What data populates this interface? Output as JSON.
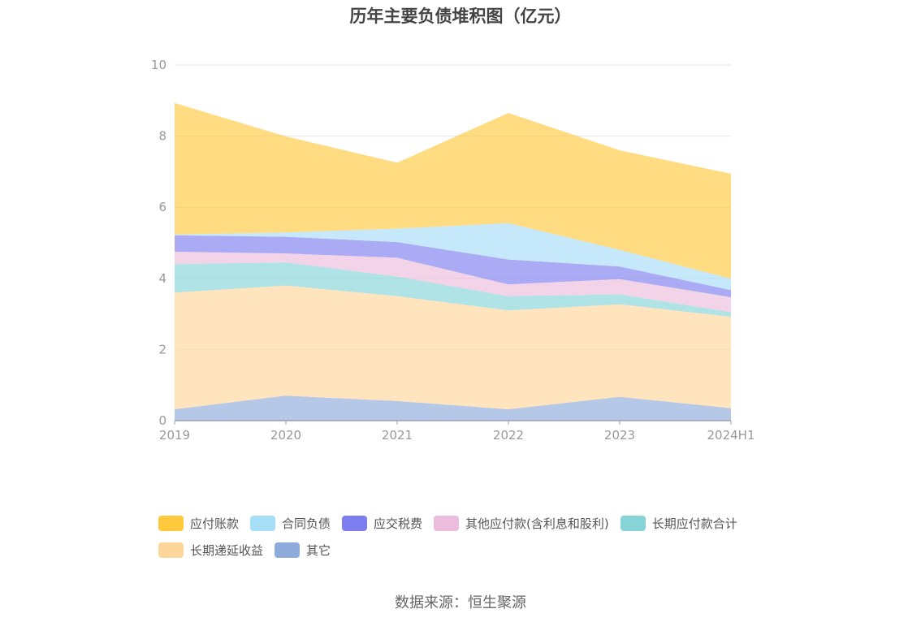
{
  "chart_data": {
    "type": "area",
    "stacked": true,
    "title": "历年主要负债堆积图（亿元）",
    "categories": [
      "2019",
      "2020",
      "2021",
      "2022",
      "2023",
      "2024H1"
    ],
    "ylim": [
      0,
      10
    ],
    "yticks": [
      0,
      2,
      4,
      6,
      8,
      10
    ],
    "grid": true,
    "legend_position": "bottom",
    "series": [
      {
        "name": "其它",
        "color": "#8faadc",
        "values": [
          0.32,
          0.7,
          0.55,
          0.32,
          0.67,
          0.35
        ]
      },
      {
        "name": "长期递延收益",
        "color": "#ffd699",
        "values": [
          3.28,
          3.1,
          2.95,
          2.78,
          2.6,
          2.57
        ]
      },
      {
        "name": "长期应付款合计",
        "color": "#86d4d8",
        "values": [
          0.8,
          0.65,
          0.55,
          0.4,
          0.28,
          0.13
        ]
      },
      {
        "name": "其他应付款(含利息和股利)",
        "color": "#ebbcdc",
        "values": [
          0.35,
          0.25,
          0.53,
          0.33,
          0.43,
          0.42
        ]
      },
      {
        "name": "应交税费",
        "color": "#7e7ef0",
        "values": [
          0.46,
          0.47,
          0.44,
          0.7,
          0.35,
          0.2
        ]
      },
      {
        "name": "合同负债",
        "color": "#a6ddf7",
        "values": [
          0.02,
          0.12,
          0.38,
          1.02,
          0.47,
          0.32
        ]
      },
      {
        "name": "应付账款",
        "color": "#ffc83d",
        "values": [
          3.7,
          2.7,
          1.85,
          3.1,
          2.8,
          2.95
        ]
      }
    ]
  },
  "legend": {
    "row1": [
      {
        "label": "应付账款",
        "color": "#ffc83d"
      },
      {
        "label": "合同负债",
        "color": "#a6ddf7"
      },
      {
        "label": "应交税费",
        "color": "#7e7ef0"
      },
      {
        "label": "其他应付款(含利息和股利)",
        "color": "#ebbcdc"
      },
      {
        "label": "长期应付款合计",
        "color": "#86d4d8"
      }
    ],
    "row2": [
      {
        "label": "长期递延收益",
        "color": "#ffd699"
      },
      {
        "label": "其它",
        "color": "#8faadc"
      }
    ]
  },
  "source": "数据来源：恒生聚源"
}
